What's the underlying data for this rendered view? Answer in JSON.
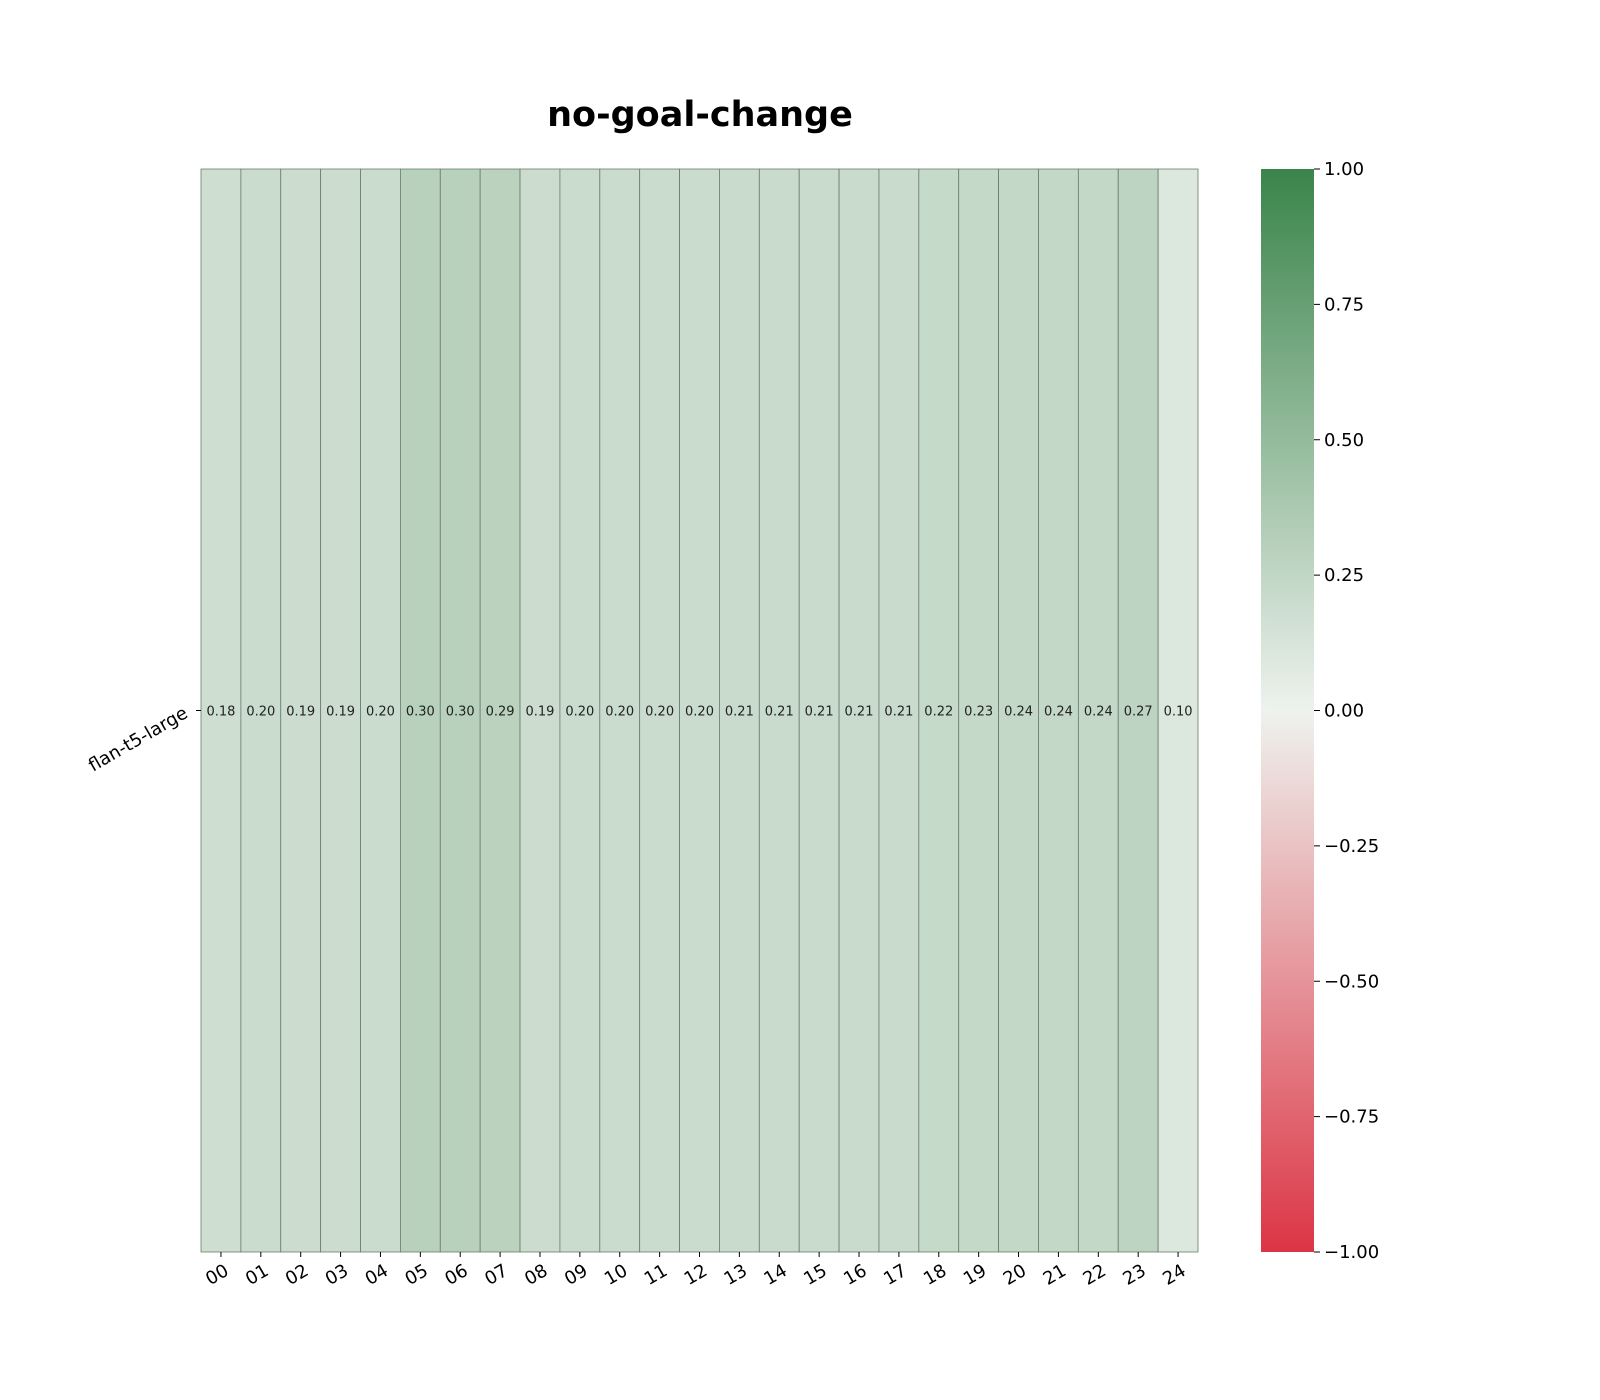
{
  "chart_data": {
    "type": "heatmap",
    "title": "no-goal-change",
    "rows": [
      "flan-t5-large"
    ],
    "columns": [
      "00",
      "01",
      "02",
      "03",
      "04",
      "05",
      "06",
      "07",
      "08",
      "09",
      "10",
      "11",
      "12",
      "13",
      "14",
      "15",
      "16",
      "17",
      "18",
      "19",
      "20",
      "21",
      "22",
      "23",
      "24"
    ],
    "values": [
      [
        0.18,
        0.2,
        0.19,
        0.19,
        0.2,
        0.3,
        0.3,
        0.29,
        0.19,
        0.2,
        0.2,
        0.2,
        0.2,
        0.21,
        0.21,
        0.21,
        0.21,
        0.21,
        0.22,
        0.23,
        0.24,
        0.24,
        0.24,
        0.27,
        0.1
      ]
    ],
    "value_labels": [
      [
        "0.18",
        "0.20",
        "0.19",
        "0.19",
        "0.20",
        "0.30",
        "0.30",
        "0.29",
        "0.19",
        "0.20",
        "0.20",
        "0.20",
        "0.20",
        "0.21",
        "0.21",
        "0.21",
        "0.21",
        "0.21",
        "0.22",
        "0.23",
        "0.24",
        "0.24",
        "0.24",
        "0.27",
        "0.10"
      ]
    ],
    "colorbar": {
      "range": [
        -1.0,
        1.0
      ],
      "ticks": [
        1.0,
        0.75,
        0.5,
        0.25,
        0.0,
        -0.25,
        -0.5,
        -0.75,
        -1.0
      ],
      "tick_labels": [
        "1.00",
        "0.75",
        "0.50",
        "0.25",
        "0.00",
        "−0.25",
        "−0.50",
        "−0.75",
        "−1.00"
      ],
      "color_low": "#dc3545",
      "color_mid": "#eef2ee",
      "color_high": "#3a844a"
    },
    "cell_border_color": "#6b7a6b",
    "grid": false
  }
}
